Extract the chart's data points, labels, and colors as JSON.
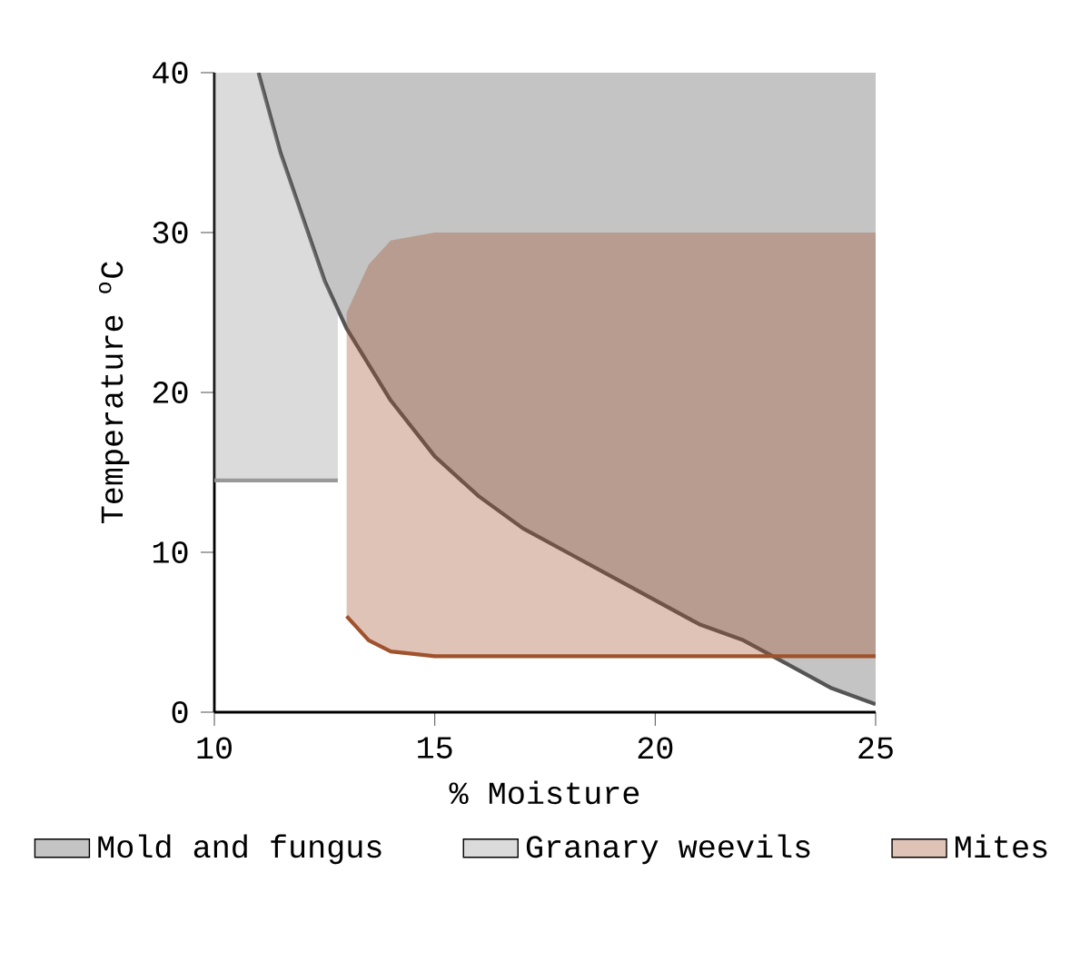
{
  "chart_data": {
    "type": "line",
    "xlabel": "% Moisture",
    "ylabel": "Temperature $^{o}$C",
    "xlim": [
      10,
      25
    ],
    "ylim": [
      0,
      40
    ],
    "xticks": [
      10,
      15,
      20,
      25
    ],
    "yticks": [
      0,
      10,
      20,
      30,
      40
    ],
    "grid": false,
    "legend": "bottom",
    "series": [
      {
        "name": "Mold and fungus",
        "color": "#555555",
        "x": [
          11,
          11.5,
          12,
          12.5,
          13,
          14,
          15,
          16,
          17,
          18,
          19,
          20,
          21,
          22,
          23,
          24,
          25
        ],
        "values": [
          40,
          35,
          31,
          27,
          24,
          19.5,
          16,
          13.5,
          11.5,
          10,
          8.5,
          7,
          5.5,
          4.5,
          3,
          1.5,
          0.5
        ],
        "lower": [
          40,
          35,
          31,
          27,
          24,
          19.5,
          16,
          13.5,
          11.5,
          10,
          8.5,
          7,
          5.5,
          4.5,
          3,
          1.5,
          0.5
        ],
        "upper": [
          40,
          40,
          40,
          40,
          40,
          40,
          40,
          40,
          40,
          40,
          40,
          40,
          40,
          40,
          40,
          40,
          40
        ]
      },
      {
        "name": "Granary weevils",
        "color": "#999999",
        "x": [
          10,
          11,
          11.5,
          12,
          12.5,
          12.8
        ],
        "values": [
          14.5,
          14.5,
          14.5,
          14.5,
          14.5,
          14.5
        ],
        "lower": [
          14.5,
          14.5,
          14.5,
          14.5,
          14.5,
          14.5
        ],
        "upper": [
          40,
          40,
          35,
          31,
          27,
          25
        ]
      },
      {
        "name": "Mites",
        "color": "#a0522d",
        "x": [
          13,
          13.5,
          14,
          15,
          17,
          20,
          22,
          25
        ],
        "values": [
          6,
          4.5,
          3.8,
          3.5,
          3.5,
          3.5,
          3.5,
          3.5
        ],
        "lower": [
          6,
          4.5,
          3.8,
          3.5,
          3.5,
          3.5,
          3.5,
          3.5
        ],
        "upper": [
          25,
          28,
          29.5,
          30,
          30,
          30,
          30,
          30
        ]
      }
    ]
  }
}
